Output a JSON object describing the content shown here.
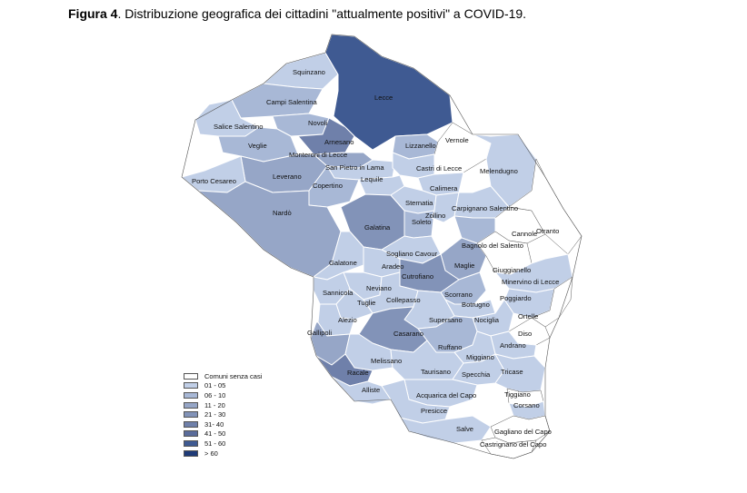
{
  "caption": {
    "figure_label": "Figura 4",
    "text": ". Distribuzione  geografica dei cittadini \"attualmente positivi\" a COVID-19."
  },
  "colors": {
    "none": "#ffffff",
    "c1": "#c1cfe7",
    "c2": "#a8b8d6",
    "c3": "#96a6c7",
    "c4": "#8293b8",
    "c5": "#6f80aa",
    "c6": "#5a6c9b",
    "c7": "#3f5a92",
    "c8": "#1f3b78",
    "border": "#ffffff",
    "outline": "#555555"
  },
  "legend": [
    {
      "label": "Comuni senza casi",
      "color": "#ffffff"
    },
    {
      "label": "01 - 05",
      "color": "#c1cfe7"
    },
    {
      "label": "06 - 10",
      "color": "#a8b8d6"
    },
    {
      "label": "11 - 20",
      "color": "#96a6c7"
    },
    {
      "label": "21 - 30",
      "color": "#8293b8"
    },
    {
      "label": "31- 40",
      "color": "#6f80aa"
    },
    {
      "label": "41 - 50",
      "color": "#5a6c9b"
    },
    {
      "label": "51 - 60",
      "color": "#3f5a92"
    },
    {
      "label": "> 60",
      "color": "#1f3b78"
    }
  ],
  "municipalities": [
    {
      "name": "Squinzano",
      "cls": "01 - 05"
    },
    {
      "name": "Campi Salentina",
      "cls": "06 - 10"
    },
    {
      "name": "Salice Salentino",
      "cls": "01 - 05"
    },
    {
      "name": "Novoli",
      "cls": "06 - 10"
    },
    {
      "name": "Veglie",
      "cls": "06 - 10"
    },
    {
      "name": "Lecce",
      "cls": "51 - 60"
    },
    {
      "name": "Arnesano",
      "cls": "31- 40"
    },
    {
      "name": "Monteroni di Lecce",
      "cls": "11 - 20"
    },
    {
      "name": "San Pietro in Lama",
      "cls": "01 - 05"
    },
    {
      "name": "Lizzanello",
      "cls": "06 - 10"
    },
    {
      "name": "Vernole",
      "cls": "Comuni senza casi"
    },
    {
      "name": "Castri di Lecce",
      "cls": "01 - 05"
    },
    {
      "name": "Melendugno",
      "cls": "01 - 05"
    },
    {
      "name": "Leverano",
      "cls": "11 - 20"
    },
    {
      "name": "Porto Cesareo",
      "cls": "01 - 05"
    },
    {
      "name": "Copertino",
      "cls": "06 - 10"
    },
    {
      "name": "Lequile",
      "cls": "01 - 05"
    },
    {
      "name": "Calimera",
      "cls": "01 - 05"
    },
    {
      "name": "Nardò",
      "cls": "11 - 20"
    },
    {
      "name": "Galatina",
      "cls": "21 - 30"
    },
    {
      "name": "Sternatia",
      "cls": "01 - 05"
    },
    {
      "name": "Soleto",
      "cls": "06 - 10"
    },
    {
      "name": "Zollino",
      "cls": "01 - 05"
    },
    {
      "name": "Carpignano Salentino",
      "cls": "01 - 05"
    },
    {
      "name": "Cannole",
      "cls": "Comuni senza casi"
    },
    {
      "name": "Otranto",
      "cls": "Comuni senza casi"
    },
    {
      "name": "Sogliano Cavour",
      "cls": "01 - 05"
    },
    {
      "name": "Bagnolo del Salento",
      "cls": "06 - 10"
    },
    {
      "name": "Galatone",
      "cls": "01 - 05"
    },
    {
      "name": "Aradeo",
      "cls": "01 - 05"
    },
    {
      "name": "Maglie",
      "cls": "11 - 20"
    },
    {
      "name": "Giuggianello",
      "cls": "Comuni senza casi"
    },
    {
      "name": "Cutrofiano",
      "cls": "21 - 30"
    },
    {
      "name": "Minervino di Lecce",
      "cls": "01 - 05"
    },
    {
      "name": "Sannicola",
      "cls": "01 - 05"
    },
    {
      "name": "Neviano",
      "cls": "01 - 05"
    },
    {
      "name": "Tuglie",
      "cls": "01 - 05"
    },
    {
      "name": "Collepasso",
      "cls": "01 - 05"
    },
    {
      "name": "Scorrano",
      "cls": "06 - 10"
    },
    {
      "name": "Poggiardo",
      "cls": "01 - 05"
    },
    {
      "name": "Botrugno",
      "cls": "01 - 05"
    },
    {
      "name": "Alezio",
      "cls": "01 - 05"
    },
    {
      "name": "Supersano",
      "cls": "01 - 05"
    },
    {
      "name": "Nociglia",
      "cls": "01 - 05"
    },
    {
      "name": "Ortelle",
      "cls": "Comuni senza casi"
    },
    {
      "name": "Gallipoli",
      "cls": "11 - 20"
    },
    {
      "name": "Casarano",
      "cls": "21 - 30"
    },
    {
      "name": "Diso",
      "cls": "Comuni senza casi"
    },
    {
      "name": "Andrano",
      "cls": "01 - 05"
    },
    {
      "name": "Ruffano",
      "cls": "06 - 10"
    },
    {
      "name": "Melissano",
      "cls": "01 - 05"
    },
    {
      "name": "Miggiano",
      "cls": "01 - 05"
    },
    {
      "name": "Racale",
      "cls": "31- 40"
    },
    {
      "name": "Taurisano",
      "cls": "01 - 05"
    },
    {
      "name": "Specchia",
      "cls": "01 - 05"
    },
    {
      "name": "Tricase",
      "cls": "01 - 05"
    },
    {
      "name": "Alliste",
      "cls": "01 - 05"
    },
    {
      "name": "Acquarica del Capo",
      "cls": "01 - 05"
    },
    {
      "name": "Tiggiano",
      "cls": "Comuni senza casi"
    },
    {
      "name": "Corsano",
      "cls": "01 - 05"
    },
    {
      "name": "Presicce",
      "cls": "01 - 05"
    },
    {
      "name": "Salve",
      "cls": "01 - 05"
    },
    {
      "name": "Gagliano del Capo",
      "cls": "Comuni senza casi"
    },
    {
      "name": "Castrignano del Capo",
      "cls": "Comuni senza casi"
    }
  ]
}
